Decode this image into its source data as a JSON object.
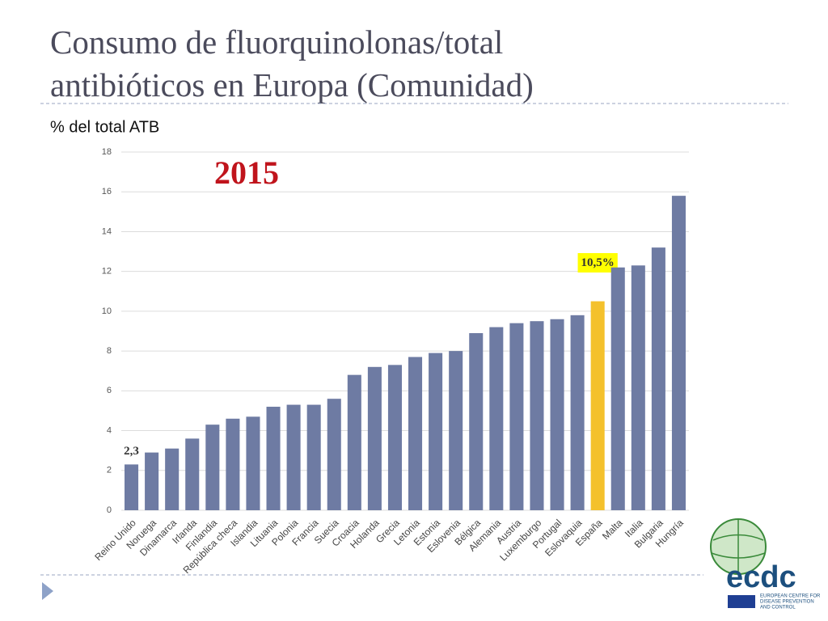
{
  "chart_data": {
    "type": "bar",
    "title": [
      "Consumo de fluorquinolonas/total",
      "antibióticos en Europa (Comunidad)"
    ],
    "ylabel": "% del total ATB",
    "annotation": "2015",
    "categories": [
      "Reino Unido",
      "Noruega",
      "Dinamarca",
      "Irlanda",
      "Finlandia",
      "República checa",
      "Islandia",
      "Lituania",
      "Polonia",
      "Francia",
      "Suecia",
      "Croacia",
      "Holanda",
      "Grecia",
      "Letonia",
      "Estonia",
      "Eslovenia",
      "Bélgica",
      "Alemania",
      "Austria",
      "Luxemburgo",
      "Portugal",
      "Eslovaquia",
      "España",
      "Malta",
      "Italia",
      "Bulgaria",
      "Hungría"
    ],
    "values": [
      2.3,
      2.9,
      3.1,
      3.6,
      4.3,
      4.6,
      4.7,
      5.2,
      5.3,
      5.3,
      5.6,
      6.8,
      7.2,
      7.3,
      7.7,
      7.9,
      8.0,
      8.9,
      9.2,
      9.4,
      9.5,
      9.6,
      9.8,
      10.5,
      12.2,
      12.3,
      13.2,
      15.8
    ],
    "value_labels": [
      "2,3",
      null,
      null,
      null,
      null,
      null,
      null,
      null,
      null,
      null,
      null,
      null,
      null,
      null,
      null,
      null,
      null,
      null,
      null,
      null,
      null,
      null,
      null,
      "10,5%",
      null,
      null,
      null,
      null
    ],
    "color": "#6e7ba3",
    "colors": [
      "#6e7ba3",
      "#6e7ba3",
      "#6e7ba3",
      "#6e7ba3",
      "#6e7ba3",
      "#6e7ba3",
      "#6e7ba3",
      "#6e7ba3",
      "#6e7ba3",
      "#6e7ba3",
      "#6e7ba3",
      "#6e7ba3",
      "#6e7ba3",
      "#6e7ba3",
      "#6e7ba3",
      "#6e7ba3",
      "#6e7ba3",
      "#6e7ba3",
      "#6e7ba3",
      "#6e7ba3",
      "#6e7ba3",
      "#6e7ba3",
      "#6e7ba3",
      "#f4c12c",
      "#6e7ba3",
      "#6e7ba3",
      "#6e7ba3",
      "#6e7ba3"
    ],
    "highlight_label_background": "#ffff00",
    "ylim": [
      0,
      18
    ],
    "yticks": [
      0,
      2,
      4,
      6,
      8,
      10,
      12,
      14,
      16,
      18
    ],
    "grid": true
  },
  "logo": {
    "name": "ecdc",
    "subtitle": [
      "EUROPEAN CENTRE FOR",
      "DISEASE PREVENTION",
      "AND CONTROL"
    ]
  }
}
